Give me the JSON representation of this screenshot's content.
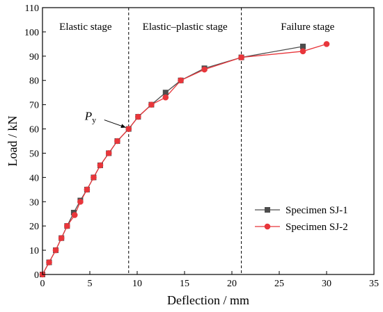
{
  "chart_data": {
    "type": "line",
    "title": "",
    "xlabel": "Deflection / mm",
    "ylabel": "Load / kN",
    "xlim": [
      0,
      35
    ],
    "ylim": [
      0,
      110
    ],
    "xticks": [
      0,
      5,
      10,
      15,
      20,
      25,
      30,
      35
    ],
    "yticks": [
      0,
      10,
      20,
      30,
      40,
      50,
      60,
      70,
      80,
      90,
      100,
      110
    ],
    "grid": false,
    "legend_position": "bottom-right",
    "stage_boundaries_x": [
      9.1,
      21.0
    ],
    "stage_labels": [
      "Elastic stage",
      "Elastic–plastic stage",
      "Failure stage"
    ],
    "annotation": {
      "text_main": "P",
      "text_sub": "y",
      "x": 9.1,
      "y": 60
    },
    "series": [
      {
        "name": "Specimen SJ-1",
        "color": "#4d4d4d",
        "marker": "square",
        "x": [
          0,
          0.7,
          1.4,
          2.0,
          2.6,
          3.3,
          4.0,
          4.7,
          5.4,
          6.1,
          7.0,
          7.9,
          9.1,
          10.1,
          11.5,
          13.0,
          14.6,
          17.1,
          21.0,
          27.5
        ],
        "y": [
          0,
          5,
          10,
          15,
          20,
          25.5,
          30.5,
          35,
          40,
          45,
          50,
          55,
          60,
          65,
          70,
          75,
          80,
          85,
          89.5,
          94
        ]
      },
      {
        "name": "Specimen SJ-2",
        "color": "#e8363b",
        "marker": "circle",
        "x": [
          0,
          0.7,
          1.4,
          2.0,
          2.6,
          3.4,
          4.0,
          4.7,
          5.4,
          6.1,
          7.0,
          7.9,
          9.1,
          10.1,
          11.5,
          13.0,
          14.6,
          17.1,
          21.0,
          27.5,
          30.0
        ],
        "y": [
          0,
          5,
          10,
          15,
          20,
          24.5,
          30,
          35,
          40,
          45,
          50,
          55,
          60,
          65,
          70,
          73,
          80,
          84.5,
          89.5,
          92,
          95
        ]
      }
    ]
  }
}
